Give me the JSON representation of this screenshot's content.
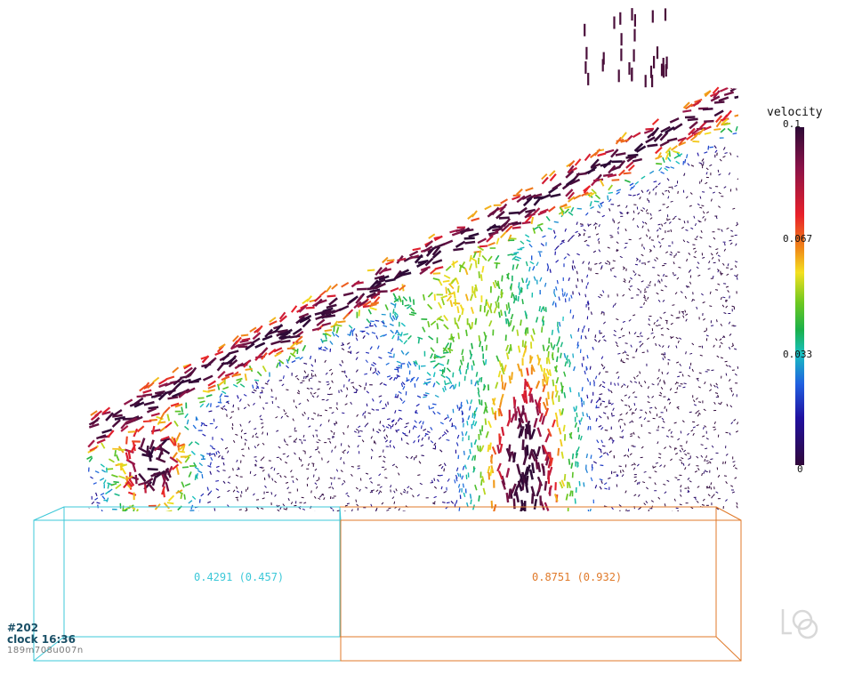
{
  "colorbar": {
    "title": "velocity",
    "ticks": [
      "0.1",
      "0.067",
      "0.033",
      "0"
    ],
    "stops": [
      "#2d0a36",
      "#5a1040",
      "#a0184a",
      "#e8202a",
      "#f08a18",
      "#f4e020",
      "#6cc820",
      "#1ab04a",
      "#18c0c0",
      "#2060e0",
      "#2010a0",
      "#30083a"
    ]
  },
  "regions": [
    {
      "label": "0.4291 (0.457)",
      "color": "#3cc8d8"
    },
    {
      "label": "0.8751 (0.932)",
      "color": "#e07a2a"
    }
  ],
  "hud": {
    "frame": "#202",
    "clock": "clock 16:36",
    "stamp": "189m708u007n"
  },
  "logo": "lsd-logo"
}
